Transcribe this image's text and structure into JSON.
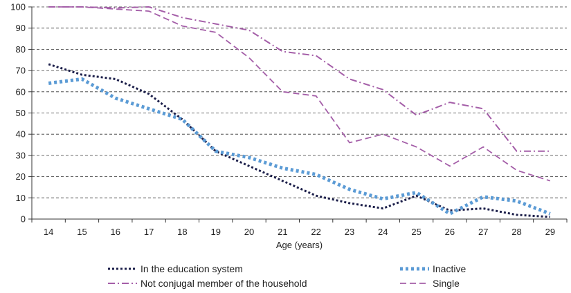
{
  "chart_data": {
    "type": "line",
    "title": "",
    "xlabel": "Age (years)",
    "ylabel": "",
    "x": [
      14,
      15,
      16,
      17,
      18,
      19,
      20,
      21,
      22,
      23,
      24,
      25,
      26,
      27,
      28,
      29
    ],
    "ylim": [
      0,
      100
    ],
    "yticks": [
      0,
      10,
      20,
      30,
      40,
      50,
      60,
      70,
      80,
      90,
      100
    ],
    "grid": "horizontal dashed",
    "legend_position": "bottom",
    "series": [
      {
        "name": "In the education system",
        "color": "#1c1f4a",
        "style": "dotted",
        "values": [
          73,
          68,
          66,
          59,
          47,
          32,
          25,
          18,
          11,
          7.5,
          5,
          11,
          4,
          5,
          2,
          1
        ]
      },
      {
        "name": "Inactive",
        "color": "#5b9bd5",
        "style": "thick-dotted",
        "values": [
          64,
          66,
          57,
          52,
          47,
          32,
          29,
          24,
          21,
          14,
          9.5,
          12.5,
          2.5,
          10.5,
          8.5,
          2.5
        ]
      },
      {
        "name": "Not conjugal member of the household",
        "color": "#a45ea8",
        "style": "dash-dot",
        "values": [
          100,
          100,
          99.5,
          100,
          95,
          92,
          89,
          79,
          77,
          66,
          61,
          49,
          55,
          52,
          32,
          32
        ]
      },
      {
        "name": "Single",
        "color": "#a45ea8",
        "style": "dashed",
        "values": [
          100,
          100,
          99,
          98,
          91,
          88,
          76,
          60,
          58,
          36,
          40,
          34,
          25,
          34,
          23,
          18
        ]
      }
    ]
  }
}
